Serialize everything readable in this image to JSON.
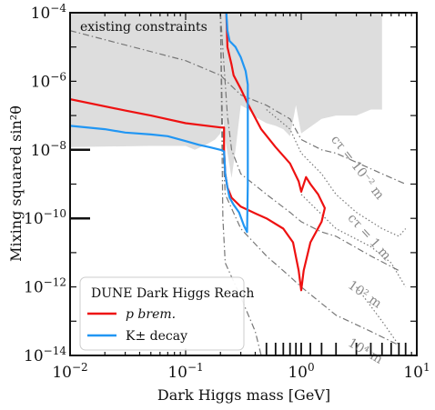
{
  "chart_data": {
    "type": "line",
    "title": "",
    "xlabel": "Dark Higgs mass [GeV]",
    "ylabel": "Mixing squared  sin²θ",
    "xscale": "log",
    "yscale": "log",
    "xlim": [
      0.01,
      10
    ],
    "ylim": [
      1e-14,
      0.0001
    ],
    "x_ticks": [
      {
        "value": 0.01,
        "base": "10",
        "exp": "−2"
      },
      {
        "value": 0.1,
        "base": "10",
        "exp": "−1"
      },
      {
        "value": 1,
        "base": "10",
        "exp": "0"
      },
      {
        "value": 10,
        "base": "10",
        "exp": "1"
      }
    ],
    "y_ticks": [
      {
        "value": 1e-14,
        "base": "10",
        "exp": "−14"
      },
      {
        "value": 1e-12,
        "base": "10",
        "exp": "−12"
      },
      {
        "value": 1e-10,
        "base": "10",
        "exp": "−10"
      },
      {
        "value": 1e-08,
        "base": "10",
        "exp": "−8"
      },
      {
        "value": 1e-06,
        "base": "10",
        "exp": "−6"
      },
      {
        "value": 0.0001,
        "base": "10",
        "exp": "−4"
      }
    ],
    "legend": {
      "title": "DUNE Dark Higgs Reach",
      "placement": "lower-left",
      "entries": [
        {
          "name": "p brem.",
          "color": "#ee1111"
        },
        {
          "name": "K± decay",
          "color": "#2196f3"
        }
      ]
    },
    "constraint_region": {
      "label": "existing constraints",
      "color": "#dddddd",
      "boundary": [
        {
          "x": 0.01,
          "y": 1.2e-08
        },
        {
          "x": 0.05,
          "y": 1.3e-08
        },
        {
          "x": 0.1,
          "y": 1.3e-08
        },
        {
          "x": 0.12,
          "y": 1e-08
        },
        {
          "x": 0.15,
          "y": 1.4e-08
        },
        {
          "x": 0.18,
          "y": 2e-08
        },
        {
          "x": 0.2,
          "y": 3e-08
        },
        {
          "x": 0.21,
          "y": 1e-07
        },
        {
          "x": 0.22,
          "y": 2e-08
        },
        {
          "x": 0.25,
          "y": 1.5e-09
        },
        {
          "x": 0.27,
          "y": 1e-08
        },
        {
          "x": 0.3,
          "y": 2e-07
        },
        {
          "x": 0.35,
          "y": 1.5e-07
        },
        {
          "x": 0.4,
          "y": 9e-08
        },
        {
          "x": 0.5,
          "y": 6e-08
        },
        {
          "x": 0.6,
          "y": 5e-08
        },
        {
          "x": 0.7,
          "y": 4e-08
        },
        {
          "x": 0.8,
          "y": 2.5e-08
        },
        {
          "x": 0.9,
          "y": 2e-07
        },
        {
          "x": 1.0,
          "y": 3e-08
        },
        {
          "x": 1.5,
          "y": 8e-08
        },
        {
          "x": 2.0,
          "y": 1e-07
        },
        {
          "x": 3.0,
          "y": 1e-07
        },
        {
          "x": 4.0,
          "y": 1.5e-07
        },
        {
          "x": 5.0,
          "y": 1.5e-07
        },
        {
          "x": 5.0,
          "y": 0.0001
        }
      ]
    },
    "series": [
      {
        "name": "p brem.",
        "color": "#ee1111",
        "points": [
          [
            0.01,
            3e-07
          ],
          [
            0.03,
            1.4e-07
          ],
          [
            0.05,
            1e-07
          ],
          [
            0.1,
            6e-08
          ],
          [
            0.2,
            4.5e-08
          ],
          [
            0.215,
            4.5e-08
          ],
          [
            0.215,
            1e-08
          ],
          [
            0.22,
            2e-09
          ],
          [
            0.23,
            8e-10
          ],
          [
            0.25,
            4e-10
          ],
          [
            0.3,
            2.2e-10
          ],
          [
            0.4,
            1.4e-10
          ],
          [
            0.5,
            1e-10
          ],
          [
            0.7,
            5e-11
          ],
          [
            0.85,
            2e-11
          ],
          [
            0.95,
            3e-12
          ],
          [
            1.0,
            8e-13
          ],
          [
            1.05,
            3e-12
          ],
          [
            1.2,
            2e-11
          ],
          [
            1.5,
            8e-11
          ],
          [
            1.6,
            2e-10
          ],
          [
            1.4,
            5e-10
          ],
          [
            1.2,
            1e-09
          ],
          [
            1.1,
            1.6e-09
          ],
          [
            1.0,
            6e-10
          ],
          [
            0.95,
            1.2e-09
          ],
          [
            0.8,
            4e-09
          ],
          [
            0.6,
            1.2e-08
          ],
          [
            0.45,
            4e-08
          ],
          [
            0.35,
            2e-07
          ],
          [
            0.3,
            6e-07
          ],
          [
            0.26,
            1.5e-06
          ],
          [
            0.25,
            3e-06
          ],
          [
            0.23,
            1e-05
          ],
          [
            0.225,
            0.0001
          ]
        ]
      },
      {
        "name": "K± decay",
        "color": "#2196f3",
        "points": [
          [
            0.01,
            5e-08
          ],
          [
            0.02,
            4e-08
          ],
          [
            0.03,
            3.2e-08
          ],
          [
            0.05,
            2.8e-08
          ],
          [
            0.07,
            2.5e-08
          ],
          [
            0.1,
            1.8e-08
          ],
          [
            0.13,
            1.4e-08
          ],
          [
            0.16,
            1.2e-08
          ],
          [
            0.2,
            1e-08
          ],
          [
            0.215,
            9e-09
          ],
          [
            0.22,
            2e-09
          ],
          [
            0.23,
            8e-10
          ],
          [
            0.24,
            4e-10
          ],
          [
            0.26,
            2.5e-10
          ],
          [
            0.29,
            1.5e-10
          ],
          [
            0.32,
            6e-11
          ],
          [
            0.34,
            4e-11
          ],
          [
            0.345,
            1e-09
          ],
          [
            0.345,
            8e-07
          ],
          [
            0.33,
            2e-06
          ],
          [
            0.3,
            5e-06
          ],
          [
            0.27,
            1e-05
          ],
          [
            0.24,
            1.5e-05
          ],
          [
            0.23,
            3e-05
          ],
          [
            0.225,
            0.0001
          ]
        ]
      }
    ],
    "lifetime_contours": [
      {
        "label": "cτ = 10⁻² m",
        "style": "dash-dot",
        "points": [
          [
            0.01,
            3e-05
          ],
          [
            0.1,
            4e-06
          ],
          [
            0.2,
            1.5e-06
          ],
          [
            0.3,
            4e-07
          ],
          [
            0.5,
            2e-07
          ],
          [
            0.8,
            8e-08
          ],
          [
            1.0,
            2e-08
          ],
          [
            1.5,
            1e-08
          ],
          [
            2.0,
            8e-09
          ],
          [
            5.0,
            2e-09
          ],
          [
            8.0,
            1e-09
          ]
        ]
      },
      {
        "label": "cτ = 1 m",
        "style": "dash-dot",
        "points": [
          [
            0.2,
            0.0001
          ],
          [
            0.23,
            1e-07
          ],
          [
            0.25,
            1e-08
          ],
          [
            0.3,
            2e-09
          ],
          [
            0.5,
            5e-10
          ],
          [
            0.8,
            1.5e-10
          ],
          [
            1.0,
            8e-11
          ],
          [
            1.5,
            4e-11
          ],
          [
            2.0,
            3e-11
          ],
          [
            4.0,
            8e-12
          ],
          [
            7.0,
            3e-12
          ]
        ]
      },
      {
        "label": "10² m",
        "style": "dash-dot",
        "points": [
          [
            0.2,
            0.0001
          ],
          [
            0.21,
            1e-08
          ],
          [
            0.22,
            5e-10
          ],
          [
            0.3,
            5e-11
          ],
          [
            0.5,
            8e-12
          ],
          [
            0.8,
            2e-12
          ],
          [
            1.0,
            1e-12
          ],
          [
            2.0,
            1.5e-13
          ],
          [
            4.0,
            5e-14
          ],
          [
            7.0,
            2e-14
          ]
        ]
      },
      {
        "label": "10⁴ m",
        "style": "dash-dot",
        "points": [
          [
            0.2,
            0.0001
          ],
          [
            0.21,
            1e-10
          ],
          [
            0.22,
            5e-12
          ],
          [
            0.3,
            5e-13
          ],
          [
            0.4,
            5e-14
          ],
          [
            0.45,
            1e-14
          ]
        ]
      }
    ],
    "dotted_curves": [
      {
        "name": "",
        "style": "dotted",
        "points": [
          [
            0.5,
            1.5e-07
          ],
          [
            0.8,
            4e-08
          ],
          [
            1.0,
            8e-09
          ],
          [
            1.5,
            2e-09
          ],
          [
            2.0,
            5e-10
          ],
          [
            3.0,
            1.5e-10
          ],
          [
            5.0,
            5e-11
          ],
          [
            7.0,
            3e-11
          ],
          [
            8.0,
            5e-11
          ]
        ]
      },
      {
        "name": "",
        "style": "dotted",
        "points": [
          [
            1.0,
            5e-10
          ],
          [
            2.0,
            5e-11
          ],
          [
            4.0,
            1.5e-11
          ],
          [
            6.0,
            5e-12
          ],
          [
            8.0,
            1e-12
          ]
        ]
      },
      {
        "name": "",
        "style": "dotted",
        "points": [
          [
            3.0,
            1e-12
          ],
          [
            5.0,
            1e-13
          ],
          [
            7.0,
            2e-14
          ]
        ]
      }
    ],
    "bottom_rug_x": [
      0.5,
      0.6,
      0.7,
      0.8,
      0.9,
      1.0,
      1.2,
      1.5,
      2.0,
      3.0,
      4.0,
      5.0,
      6.0,
      7.0,
      8.0
    ],
    "annotations": [
      {
        "text": "cτ = 10⁻² m",
        "x": 1.8,
        "y": 2e-08,
        "rotation": 52
      },
      {
        "text": "cτ = 1 m",
        "x": 2.5,
        "y": 1e-10,
        "rotation": 48
      },
      {
        "text": "10² m",
        "x": 2.5,
        "y": 1e-12,
        "rotation": 35
      },
      {
        "text": "10⁴ m",
        "x": 2.5,
        "y": 2e-14,
        "rotation": 30
      }
    ]
  }
}
